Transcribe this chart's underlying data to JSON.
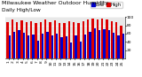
{
  "title": "Milwaukee Weather Outdoor Humidity",
  "subtitle": "Daily High/Low",
  "high_values": [
    88,
    93,
    88,
    91,
    87,
    90,
    85,
    88,
    93,
    87,
    91,
    85,
    86,
    90,
    88,
    85,
    90,
    93,
    96,
    93,
    95,
    93,
    90,
    88,
    80
  ],
  "low_values": [
    55,
    65,
    68,
    63,
    55,
    58,
    42,
    60,
    65,
    55,
    60,
    52,
    53,
    38,
    55,
    40,
    58,
    65,
    72,
    68,
    70,
    68,
    62,
    55,
    60
  ],
  "high_color": "#dd0000",
  "low_color": "#0000cc",
  "bg_color": "#ffffff",
  "plot_bg": "#e8e8e8",
  "ylim": [
    0,
    100
  ],
  "yticks": [
    20,
    40,
    60,
    80,
    100
  ],
  "x_labels": [
    "1",
    "2",
    "3",
    "4",
    "5",
    "6",
    "7",
    "8",
    "9",
    "10",
    "11",
    "12",
    "13",
    "14",
    "15",
    "16",
    "17",
    "18",
    "19",
    "20",
    "21",
    "22",
    "23",
    "24",
    "25"
  ],
  "legend_high": "High",
  "legend_low": "Low",
  "bar_width": 0.42,
  "title_fontsize": 4.5,
  "label_fontsize": 3.8,
  "tick_fontsize": 3.2
}
